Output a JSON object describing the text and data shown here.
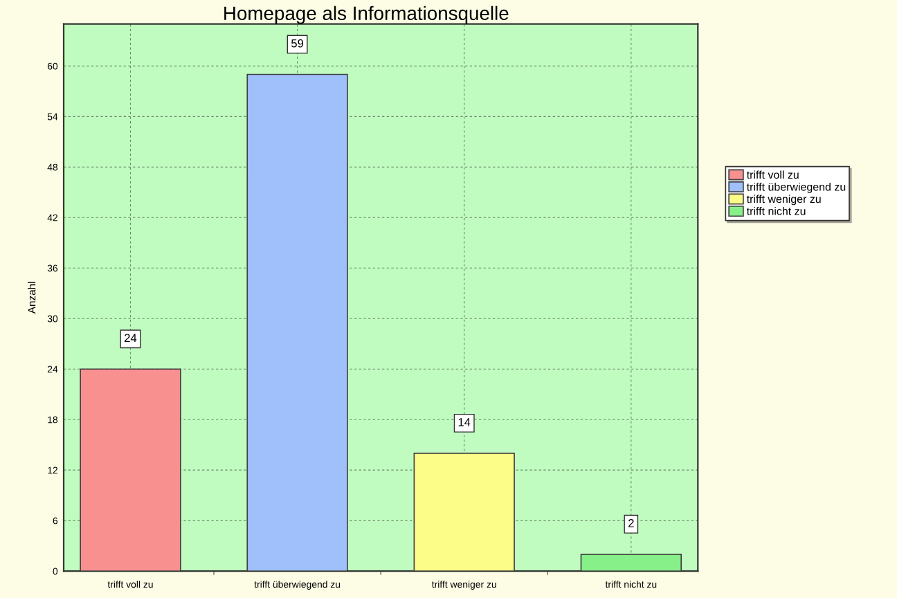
{
  "chart_data": {
    "type": "bar",
    "title": "Homepage als Informationsquelle",
    "ylabel": "Anzahl",
    "categories": [
      "trifft voll zu",
      "trifft überwiegend zu",
      "trifft weniger zu",
      "trifft nicht zu"
    ],
    "stacked": true,
    "series": [
      {
        "name": "trifft voll zu",
        "color": "#f89090",
        "values": [
          24,
          null,
          null,
          null
        ]
      },
      {
        "name": "trifft überwiegend zu",
        "color": "#a0c0fc",
        "values": [
          null,
          59,
          null,
          null
        ]
      },
      {
        "name": "trifft weniger zu",
        "color": "#fcfc88",
        "values": [
          null,
          null,
          14,
          null
        ]
      },
      {
        "name": "trifft nicht zu",
        "color": "#88f088",
        "values": [
          null,
          null,
          null,
          2
        ]
      }
    ],
    "ylim": [
      0,
      65
    ],
    "yticks": [
      0,
      6,
      12,
      18,
      24,
      30,
      36,
      42,
      48,
      54,
      60
    ],
    "grid": true,
    "legend": "right",
    "data_labels": true
  }
}
